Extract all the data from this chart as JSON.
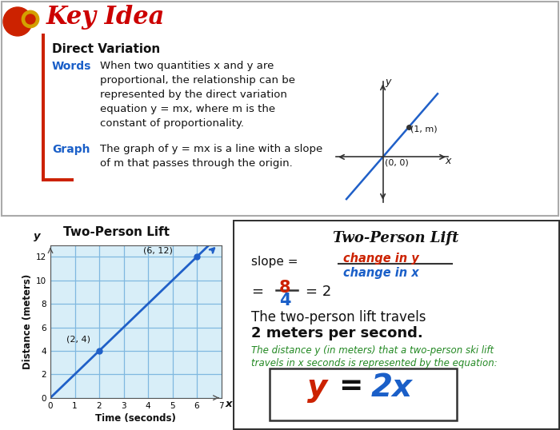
{
  "bg_color": "#ffffff",
  "title_color": "#cc0000",
  "words_color": "#1a5fc8",
  "graph_color": "#1a5fc8",
  "chart_line_color": "#2060c8",
  "chart_bg": "#d8eef8",
  "chart_grid_color": "#80b8e0",
  "bottom_left_bg": "#c0a0d0",
  "green_text_color": "#228822",
  "red_color": "#cc2200",
  "blue_color": "#1a5fc8",
  "black_color": "#111111",
  "xlabel": "Time (seconds)",
  "ylabel": "Distance (meters)",
  "point1": [
    2,
    4
  ],
  "point2": [
    6,
    12
  ]
}
